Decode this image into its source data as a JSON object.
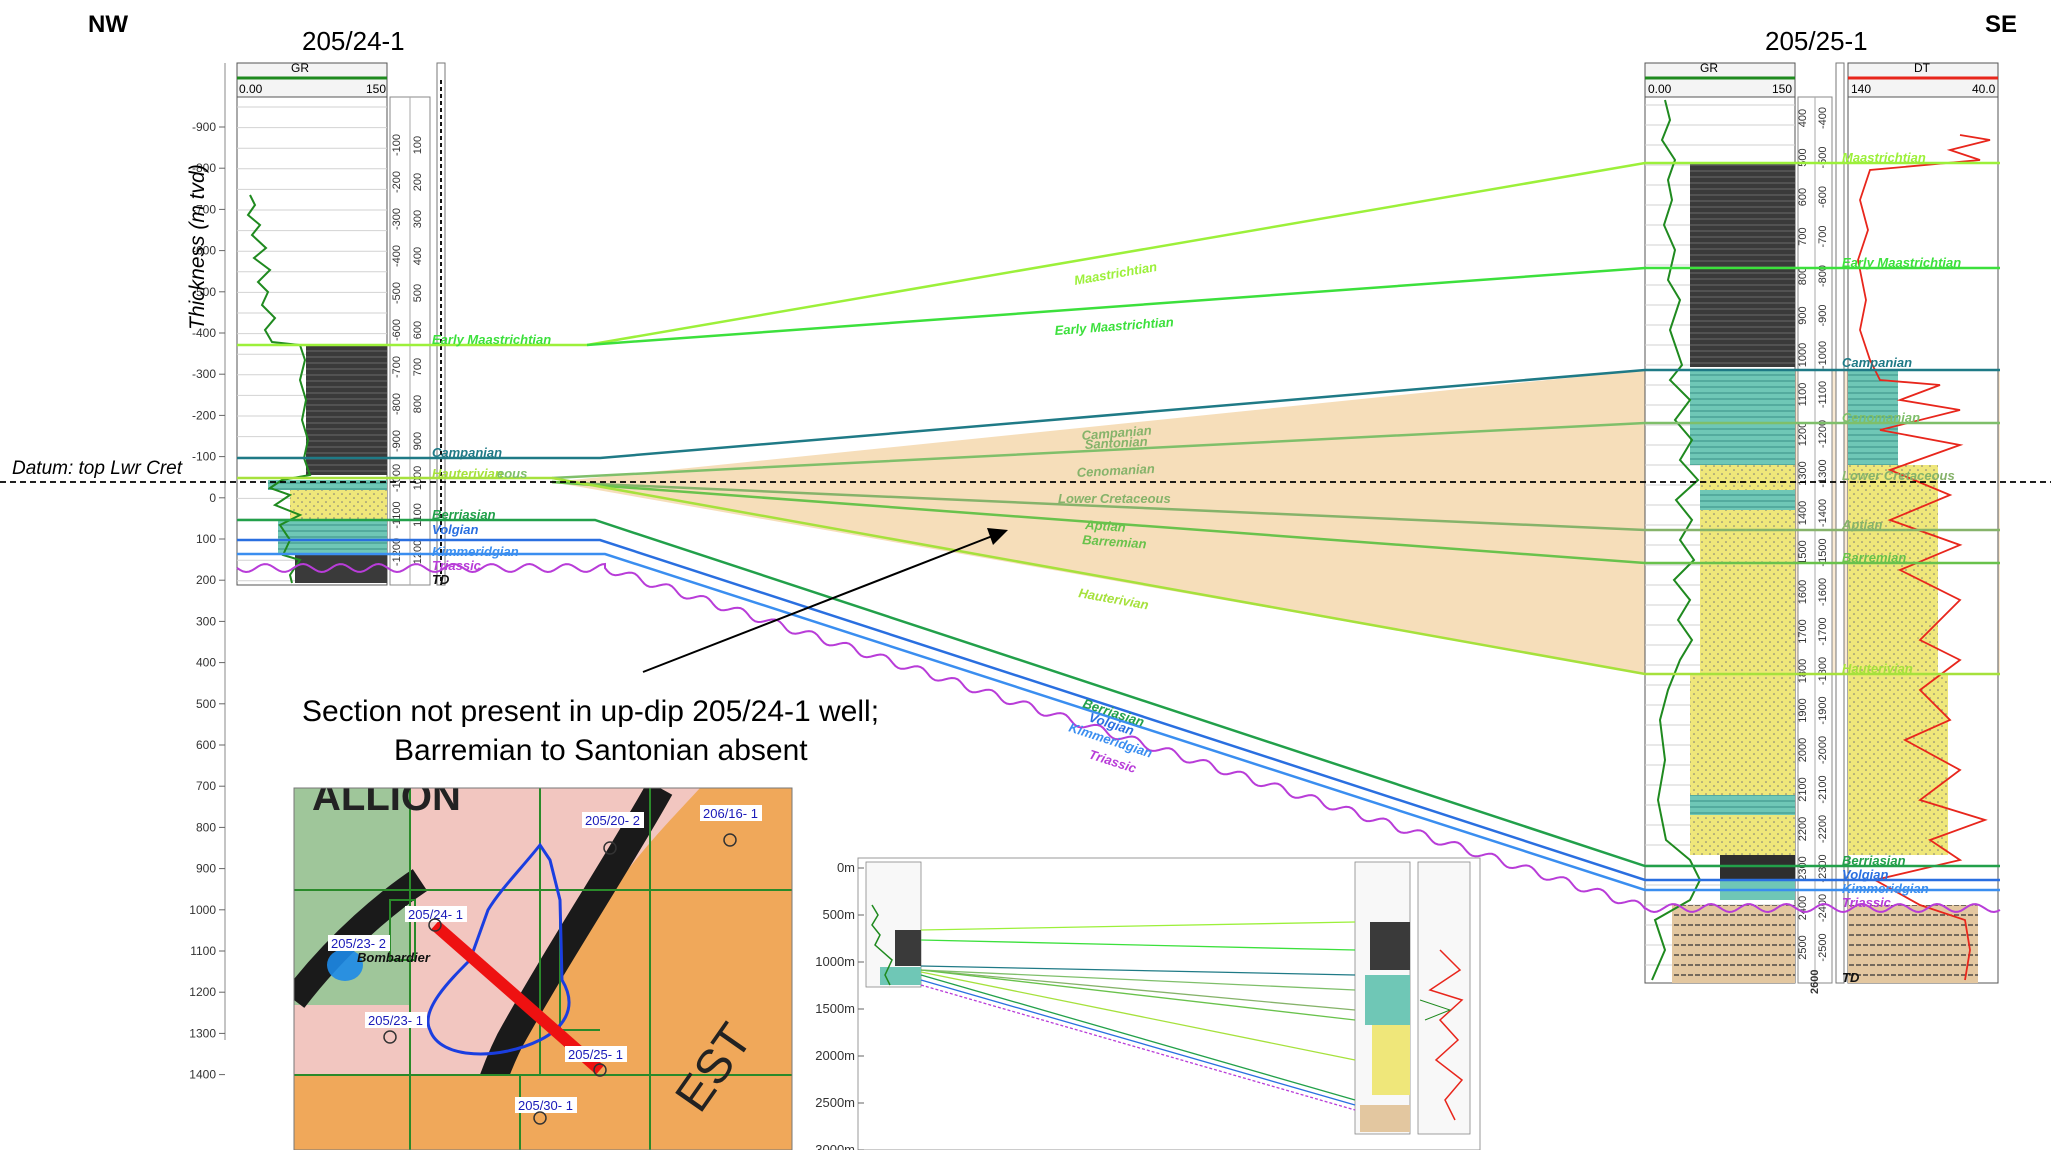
{
  "header": {
    "nw_label": "NW",
    "se_label": "SE",
    "left_well": "205/24-1",
    "right_well": "205/25-1",
    "y_axis_title": "Thickness (m tvd)",
    "datum_label": "Datum: top Lwr Cret"
  },
  "left_log": {
    "track_title": "GR",
    "scale_min": "0.00",
    "scale_max": "150",
    "thickness_ticks": [
      "-900",
      "-800",
      "-700",
      "-600",
      "-500",
      "-400",
      "-300",
      "-200",
      "-100",
      "0",
      "100",
      "200",
      "300",
      "400",
      "500",
      "600",
      "700",
      "800",
      "900",
      "1000",
      "1100",
      "1200",
      "1300",
      "1400"
    ],
    "depth_ticks_a": [
      "-100",
      "-200",
      "-300",
      "-400",
      "-500",
      "-600",
      "-700",
      "-800",
      "-900",
      "-1000",
      "-1100",
      "-1200"
    ],
    "depth_ticks_b": [
      "100",
      "200",
      "300",
      "400",
      "500",
      "600",
      "700",
      "800",
      "900",
      "1000",
      "1100",
      "1200"
    ],
    "tops": [
      "Early Maastrichtian",
      "Campanian",
      "Hauterivian",
      "Berriasian",
      "Volgian",
      "Kimmeridgian",
      "Triassic",
      "TD"
    ],
    "overlap_fragment": "eous"
  },
  "right_log": {
    "gr_title": "GR",
    "gr_min": "0.00",
    "gr_max": "150",
    "dt_title": "DT",
    "dt_min": "140",
    "dt_max": "40.0",
    "depth_ticks": [
      "400",
      "500",
      "600",
      "700",
      "800",
      "900",
      "1000",
      "1100",
      "1200",
      "1300",
      "1400",
      "1500",
      "1600",
      "1700",
      "1800",
      "1900",
      "2000",
      "2100",
      "2200",
      "2300",
      "2400",
      "2500"
    ],
    "depth_ticks_neg": [
      "-400",
      "-500",
      "-600",
      "-700",
      "-800",
      "-900",
      "-1000",
      "-1100",
      "-1200",
      "-1300",
      "-1400",
      "-1500",
      "-1600",
      "-1700",
      "-1800",
      "-1900",
      "-2000",
      "-2100",
      "-2200",
      "-2300",
      "-2400",
      "-2500"
    ],
    "tops": [
      "Maastrichtian",
      "Early Maastrichtian",
      "Campanian",
      "Cenomanian",
      "Lower Cretaceous",
      "Aptian",
      "Barremian",
      "Hauterivian",
      "Berriasian",
      "Volgian",
      "Kimmeridgian",
      "Triassic",
      "TD"
    ],
    "bottom_tick": "2600"
  },
  "correlation_labels": [
    "Maastrichtian",
    "Early Maastrichtian",
    "Campanian",
    "Santonian",
    "Cenomanian",
    "Lower Cretaceous",
    "Aptian",
    "Barremian",
    "Hauterivian",
    "Berriasian",
    "Volgian",
    "Kimmeridgian",
    "Triassic"
  ],
  "colors": {
    "maastrichtian": "#9cf03a",
    "early_maastrichtian": "#3ce03c",
    "campanian": "#1f7a86",
    "cenomanian": "#7fbf6a",
    "lower_cretaceous": "#86b36a",
    "barremian": "#69c24c",
    "hauterivian": "#a6e13c",
    "berriasian": "#22a04a",
    "volgian": "#2a6fe0",
    "kimmeridgian": "#3a8ef0",
    "triassic": "#b83cd8",
    "wedge_fill": "#f6dcb6",
    "gr_curve": "#1f8a1f",
    "dt_curve": "#e8261c",
    "red_line": "#e8141c"
  },
  "annotation": {
    "line1": "Section not present in up-dip 205/24-1 well;",
    "line2": "Barremian to Santonian absent"
  },
  "map": {
    "top_text": "ALLION",
    "bottom_text": "EST",
    "wells": [
      "205/20- 2",
      "206/16- 1",
      "205/24- 1",
      "205/23- 2",
      "205/23- 1",
      "205/25- 1",
      "205/30- 1"
    ],
    "field_name": "Bombardier"
  },
  "inset": {
    "depth_ticks": [
      "0m",
      "500m",
      "1000m",
      "1500m",
      "2000m",
      "2500m",
      "3000m"
    ]
  }
}
